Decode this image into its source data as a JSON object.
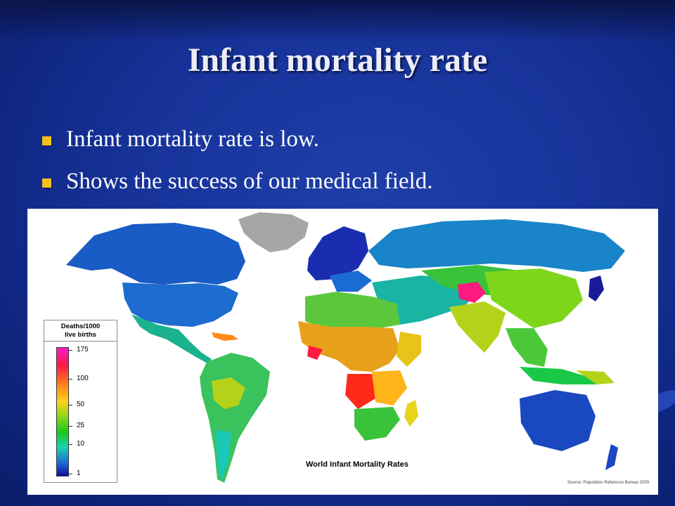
{
  "slide": {
    "title": "Infant mortality rate",
    "bullets": [
      "Infant mortality rate is low.",
      "Shows the success of our medical field."
    ]
  },
  "map": {
    "title": "World Infant Mortality Rates",
    "source": "Source: Population Reference Bureau 2009",
    "legend": {
      "heading_line1": "Deaths/1000",
      "heading_line2": "live births",
      "ticks": [
        "175",
        "100",
        "50",
        "25",
        "10",
        "1"
      ]
    }
  },
  "colors": {
    "background": "#17339a",
    "bullet_marker": "#f4c21d",
    "title_text": "#ececf6"
  }
}
